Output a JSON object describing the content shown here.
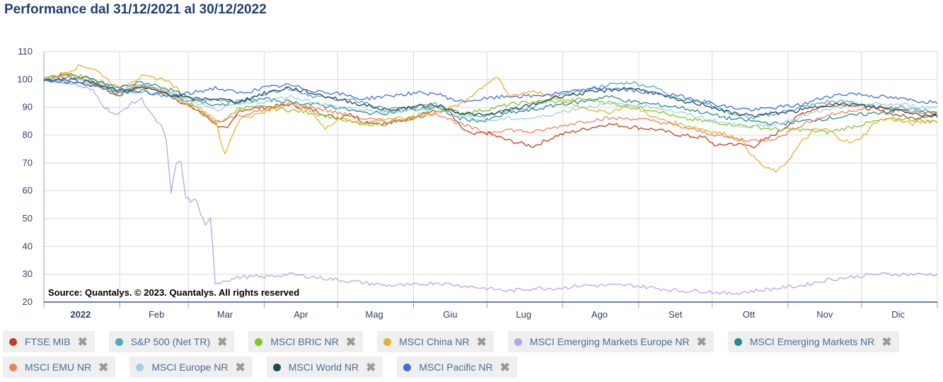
{
  "title": "Performance dal 31/12/2021 al 30/12/2022",
  "source": "Source: Quantalys. © 2023. Quantalys. All rights reserved",
  "chart_data": {
    "type": "line",
    "title": "Performance dal 31/12/2021 al 30/12/2022",
    "ylim": [
      20,
      110
    ],
    "yticks": [
      20,
      30,
      40,
      50,
      60,
      70,
      80,
      90,
      100,
      110
    ],
    "xlim": [
      0,
      365
    ],
    "xticks": [
      {
        "label": "2022",
        "day": 15,
        "bold": true
      },
      {
        "label": "Feb",
        "day": 46
      },
      {
        "label": "Mar",
        "day": 74
      },
      {
        "label": "Apr",
        "day": 105
      },
      {
        "label": "Mag",
        "day": 135
      },
      {
        "label": "Giu",
        "day": 166
      },
      {
        "label": "Lug",
        "day": 196
      },
      {
        "label": "Ago",
        "day": 227
      },
      {
        "label": "Set",
        "day": 258
      },
      {
        "label": "Ott",
        "day": 288
      },
      {
        "label": "Nov",
        "day": 319
      },
      {
        "label": "Dic",
        "day": 349
      }
    ],
    "grid": true,
    "series": [
      {
        "name": "FTSE MIB",
        "color": "#c0401c",
        "x": [
          0,
          10,
          20,
          30,
          40,
          50,
          60,
          65,
          70,
          75,
          80,
          90,
          100,
          105,
          110,
          120,
          125,
          130,
          140,
          150,
          155,
          165,
          170,
          175,
          180,
          190,
          200,
          210,
          220,
          230,
          240,
          250,
          260,
          270,
          275,
          280,
          290,
          300,
          310,
          320,
          330,
          335,
          340,
          345,
          350,
          355,
          360,
          365
        ],
        "y": [
          100,
          102,
          99,
          94,
          98,
          95,
          90,
          88,
          84,
          82,
          89,
          90,
          91,
          90,
          89,
          86,
          88,
          85,
          84,
          86,
          88,
          89,
          83,
          80,
          81,
          78,
          76,
          80,
          82,
          84,
          83,
          82,
          80,
          79,
          76,
          77,
          76,
          81,
          88,
          91,
          91,
          90,
          89,
          88,
          87,
          86,
          87,
          87
        ]
      },
      {
        "name": "S&P 500 (Net TR)",
        "color": "#4fa8bf",
        "x": [
          0,
          10,
          20,
          30,
          40,
          50,
          60,
          70,
          80,
          90,
          100,
          110,
          120,
          130,
          140,
          150,
          160,
          170,
          180,
          190,
          200,
          210,
          220,
          230,
          240,
          250,
          260,
          270,
          280,
          290,
          300,
          310,
          320,
          330,
          340,
          350,
          360,
          365
        ],
        "y": [
          100,
          99,
          98,
          95,
          96,
          94,
          92,
          93,
          92,
          95,
          97,
          94,
          93,
          92,
          89,
          90,
          91,
          88,
          87,
          89,
          90,
          94,
          96,
          98,
          99,
          97,
          93,
          92,
          88,
          86,
          88,
          90,
          92,
          92,
          90,
          90,
          89,
          88
        ]
      },
      {
        "name": "MSCI BRIC NR",
        "color": "#7ec827",
        "x": [
          0,
          10,
          20,
          30,
          40,
          50,
          60,
          65,
          70,
          75,
          80,
          90,
          100,
          110,
          120,
          130,
          140,
          150,
          160,
          170,
          180,
          190,
          200,
          210,
          220,
          230,
          240,
          250,
          260,
          270,
          280,
          290,
          300,
          310,
          320,
          330,
          340,
          350,
          360,
          365
        ],
        "y": [
          101,
          102,
          100,
          96,
          98,
          96,
          91,
          88,
          84,
          86,
          90,
          90,
          89,
          88,
          86,
          84,
          84,
          86,
          90,
          88,
          89,
          91,
          92,
          92,
          93,
          92,
          90,
          89,
          86,
          85,
          84,
          83,
          82,
          82,
          81,
          83,
          85,
          86,
          85,
          85
        ]
      },
      {
        "name": "MSCI China NR",
        "color": "#e8b030",
        "x": [
          0,
          10,
          15,
          20,
          25,
          30,
          40,
          50,
          55,
          60,
          70,
          72,
          74,
          76,
          80,
          90,
          100,
          110,
          115,
          120,
          130,
          140,
          150,
          160,
          170,
          180,
          185,
          190,
          200,
          210,
          220,
          230,
          240,
          250,
          260,
          270,
          280,
          285,
          290,
          295,
          300,
          305,
          310,
          315,
          320,
          325,
          330,
          335,
          340,
          345,
          350,
          355,
          360,
          365
        ],
        "y": [
          100,
          103,
          105,
          104,
          101,
          97,
          101,
          100,
          96,
          92,
          86,
          78,
          73,
          78,
          86,
          88,
          92,
          88,
          82,
          86,
          84,
          86,
          86,
          88,
          91,
          98,
          101,
          94,
          96,
          93,
          90,
          88,
          91,
          86,
          84,
          82,
          80,
          78,
          72,
          68,
          67,
          72,
          78,
          82,
          82,
          79,
          77,
          80,
          85,
          86,
          85,
          84,
          85,
          85
        ]
      },
      {
        "name": "MSCI Emerging Markets Europe NR",
        "color": "#b5a6ee",
        "x": [
          0,
          10,
          20,
          25,
          30,
          35,
          40,
          45,
          48,
          50,
          52,
          54,
          56,
          58,
          60,
          62,
          64,
          66,
          68,
          69,
          70,
          72,
          74,
          76,
          80,
          90,
          100,
          110,
          120,
          130,
          140,
          150,
          160,
          170,
          180,
          190,
          200,
          210,
          220,
          230,
          240,
          250,
          260,
          270,
          280,
          290,
          300,
          310,
          320,
          330,
          340,
          350,
          360,
          365
        ],
        "y": [
          100,
          99,
          96,
          90,
          87,
          91,
          93,
          86,
          83,
          78,
          59,
          70,
          70,
          58,
          56,
          57,
          52,
          47,
          50,
          40,
          27,
          27,
          28,
          28,
          29,
          29,
          30,
          29,
          28,
          27,
          26,
          26,
          27,
          26,
          25,
          24,
          25,
          25,
          26,
          26,
          26,
          25,
          24,
          24,
          23,
          24,
          25,
          26,
          28,
          29,
          30,
          30,
          30,
          30
        ]
      },
      {
        "name": "MSCI Emerging Markets NR",
        "color": "#2a8a8f",
        "x": [
          0,
          10,
          20,
          30,
          40,
          50,
          60,
          70,
          80,
          90,
          100,
          110,
          120,
          130,
          140,
          150,
          160,
          170,
          180,
          190,
          200,
          210,
          220,
          230,
          240,
          250,
          260,
          270,
          280,
          290,
          300,
          310,
          320,
          330,
          340,
          350,
          360,
          365
        ],
        "y": [
          100,
          101,
          100,
          97,
          99,
          97,
          93,
          91,
          92,
          93,
          92,
          91,
          90,
          88,
          88,
          89,
          90,
          86,
          85,
          88,
          89,
          91,
          92,
          94,
          92,
          91,
          90,
          88,
          86,
          85,
          84,
          85,
          86,
          87,
          88,
          89,
          88,
          88
        ]
      },
      {
        "name": "MSCI EMU NR",
        "color": "#f08060",
        "x": [
          0,
          10,
          20,
          30,
          40,
          50,
          60,
          70,
          80,
          90,
          100,
          110,
          120,
          130,
          140,
          150,
          160,
          170,
          180,
          190,
          200,
          210,
          220,
          230,
          240,
          250,
          260,
          270,
          280,
          290,
          300,
          310,
          320,
          330,
          340,
          350,
          360,
          365
        ],
        "y": [
          100,
          101,
          99,
          95,
          98,
          95,
          90,
          85,
          87,
          89,
          91,
          90,
          88,
          86,
          85,
          86,
          88,
          84,
          81,
          82,
          81,
          83,
          85,
          86,
          86,
          85,
          83,
          81,
          79,
          78,
          79,
          84,
          87,
          89,
          90,
          89,
          88,
          88
        ]
      },
      {
        "name": "MSCI Europe NR",
        "color": "#9fd1da",
        "x": [
          0,
          10,
          20,
          30,
          40,
          50,
          60,
          70,
          80,
          90,
          100,
          110,
          120,
          130,
          140,
          150,
          160,
          170,
          180,
          190,
          200,
          210,
          220,
          230,
          240,
          250,
          260,
          270,
          280,
          290,
          300,
          310,
          320,
          330,
          340,
          350,
          360,
          365
        ],
        "y": [
          100,
          101,
          99,
          96,
          98,
          96,
          92,
          89,
          91,
          92,
          94,
          92,
          90,
          89,
          88,
          89,
          90,
          87,
          85,
          86,
          86,
          88,
          90,
          91,
          91,
          90,
          88,
          86,
          84,
          83,
          84,
          87,
          89,
          91,
          91,
          91,
          90,
          90
        ]
      },
      {
        "name": "MSCI World NR",
        "color": "#1f4a52",
        "x": [
          0,
          10,
          20,
          30,
          40,
          50,
          60,
          70,
          80,
          90,
          100,
          110,
          120,
          130,
          140,
          150,
          160,
          170,
          180,
          190,
          200,
          210,
          220,
          230,
          240,
          250,
          260,
          270,
          280,
          290,
          300,
          310,
          320,
          330,
          340,
          350,
          360,
          365
        ],
        "y": [
          100,
          100,
          99,
          96,
          97,
          95,
          93,
          93,
          92,
          95,
          97,
          95,
          93,
          91,
          89,
          90,
          91,
          88,
          87,
          89,
          91,
          94,
          95,
          96,
          97,
          95,
          92,
          91,
          88,
          87,
          88,
          89,
          91,
          91,
          90,
          89,
          87,
          87
        ]
      },
      {
        "name": "MSCI Pacific NR",
        "color": "#3f6fdc",
        "x": [
          0,
          10,
          20,
          30,
          40,
          50,
          60,
          70,
          80,
          90,
          100,
          110,
          120,
          130,
          140,
          150,
          160,
          170,
          180,
          190,
          200,
          210,
          220,
          230,
          240,
          250,
          260,
          270,
          280,
          290,
          300,
          310,
          320,
          330,
          340,
          350,
          360,
          365
        ],
        "y": [
          100,
          99,
          98,
          96,
          96,
          94,
          95,
          97,
          95,
          97,
          98,
          96,
          95,
          93,
          94,
          95,
          95,
          92,
          93,
          94,
          94,
          95,
          96,
          97,
          96,
          95,
          94,
          92,
          90,
          89,
          90,
          91,
          94,
          95,
          94,
          93,
          92,
          92
        ]
      }
    ]
  }
}
